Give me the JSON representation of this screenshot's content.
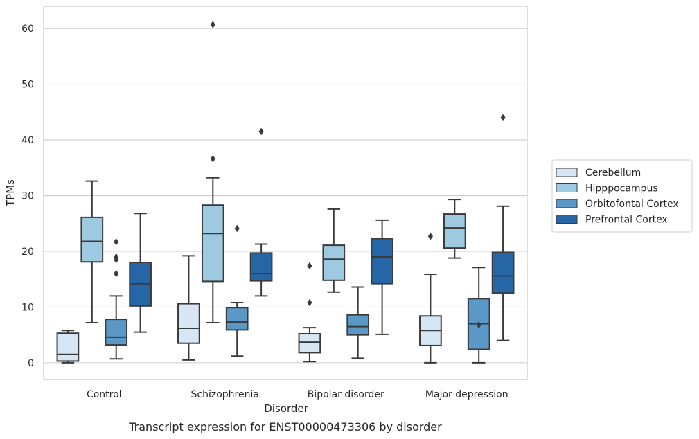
{
  "chart_data": {
    "type": "box",
    "caption": "Transcript expression for ENST00000473306 by disorder",
    "xlabel": "Disorder",
    "ylabel": "TPMs",
    "ylim": [
      -3,
      64
    ],
    "yticks": [
      0,
      10,
      20,
      30,
      40,
      50,
      60
    ],
    "grid": true,
    "legend_position": "right",
    "categories": [
      "Control",
      "Schizophrenia",
      "Bipolar disorder",
      "Major depression"
    ],
    "series": [
      {
        "name": "Cerebellum",
        "color": "#d6e6f4",
        "boxes": [
          {
            "whisker_low": 0,
            "q1": 0.3,
            "median": 1.5,
            "q3": 5.3,
            "whisker_high": 5.8,
            "outliers": []
          },
          {
            "whisker_low": 0.5,
            "q1": 3.5,
            "median": 6.2,
            "q3": 10.6,
            "whisker_high": 19.2,
            "outliers": []
          },
          {
            "whisker_low": 0.2,
            "q1": 1.8,
            "median": 3.7,
            "q3": 5.2,
            "whisker_high": 6.3,
            "outliers": [
              10.8,
              17.4
            ]
          },
          {
            "whisker_low": 0,
            "q1": 3.1,
            "median": 5.8,
            "q3": 8.4,
            "whisker_high": 15.9,
            "outliers": [
              22.7
            ]
          }
        ]
      },
      {
        "name": "Hipppocampus",
        "color": "#9ecae1",
        "boxes": [
          {
            "whisker_low": 7.2,
            "q1": 18.1,
            "median": 21.8,
            "q3": 26.1,
            "whisker_high": 32.6,
            "outliers": []
          },
          {
            "whisker_low": 7.2,
            "q1": 14.6,
            "median": 23.2,
            "q3": 28.3,
            "whisker_high": 33.2,
            "outliers": [
              36.6,
              60.7
            ]
          },
          {
            "whisker_low": 12.7,
            "q1": 14.8,
            "median": 18.6,
            "q3": 21.1,
            "whisker_high": 27.6,
            "outliers": []
          },
          {
            "whisker_low": 18.8,
            "q1": 20.6,
            "median": 24.2,
            "q3": 26.7,
            "whisker_high": 29.3,
            "outliers": []
          }
        ]
      },
      {
        "name": "Orbitofontal Cortex",
        "color": "#5a98c7",
        "boxes": [
          {
            "whisker_low": 0.7,
            "q1": 3.2,
            "median": 4.6,
            "q3": 7.8,
            "whisker_high": 12.0,
            "outliers": [
              16.0,
              18.5,
              19.0,
              21.7
            ]
          },
          {
            "whisker_low": 1.2,
            "q1": 5.9,
            "median": 7.3,
            "q3": 9.9,
            "whisker_high": 10.8,
            "outliers": [
              24.1
            ]
          },
          {
            "whisker_low": 0.8,
            "q1": 5.0,
            "median": 6.5,
            "q3": 8.6,
            "whisker_high": 13.6,
            "outliers": []
          },
          {
            "whisker_low": 0,
            "q1": 2.4,
            "median": 7.0,
            "q3": 11.5,
            "whisker_high": 17.1,
            "outliers": [
              6.8
            ]
          }
        ]
      },
      {
        "name": "Prefrontal Cortex",
        "color": "#2666a7",
        "boxes": [
          {
            "whisker_low": 5.5,
            "q1": 10.2,
            "median": 14.2,
            "q3": 18.0,
            "whisker_high": 26.8,
            "outliers": []
          },
          {
            "whisker_low": 12.0,
            "q1": 14.7,
            "median": 16.0,
            "q3": 19.7,
            "whisker_high": 21.3,
            "outliers": [
              41.5
            ]
          },
          {
            "whisker_low": 5.1,
            "q1": 14.2,
            "median": 19.0,
            "q3": 22.3,
            "whisker_high": 25.6,
            "outliers": []
          },
          {
            "whisker_low": 4.0,
            "q1": 12.5,
            "median": 15.6,
            "q3": 19.8,
            "whisker_high": 28.1,
            "outliers": [
              44.0
            ]
          }
        ]
      }
    ]
  }
}
